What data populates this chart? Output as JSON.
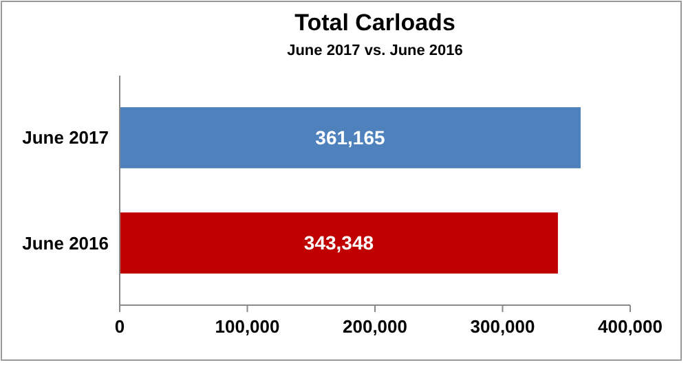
{
  "chart_data": {
    "type": "bar",
    "title": "Total Carloads",
    "subtitle": "June 2017 vs. June 2016",
    "orientation": "horizontal",
    "categories": [
      "June 2017",
      "June 2016"
    ],
    "values": [
      361165,
      343348
    ],
    "colors": [
      "#4f81bd",
      "#c00000"
    ],
    "value_labels": [
      "361,165",
      "343,348"
    ],
    "xlim": [
      0,
      400000
    ],
    "xticks": [
      0,
      {
        "value": 100000,
        "label": "100,000"
      },
      {
        "value": 200000,
        "label": "200,000"
      },
      {
        "value": 300000,
        "label": "300,000"
      },
      {
        "value": 400000,
        "label": "400,000"
      }
    ],
    "grid": false
  }
}
